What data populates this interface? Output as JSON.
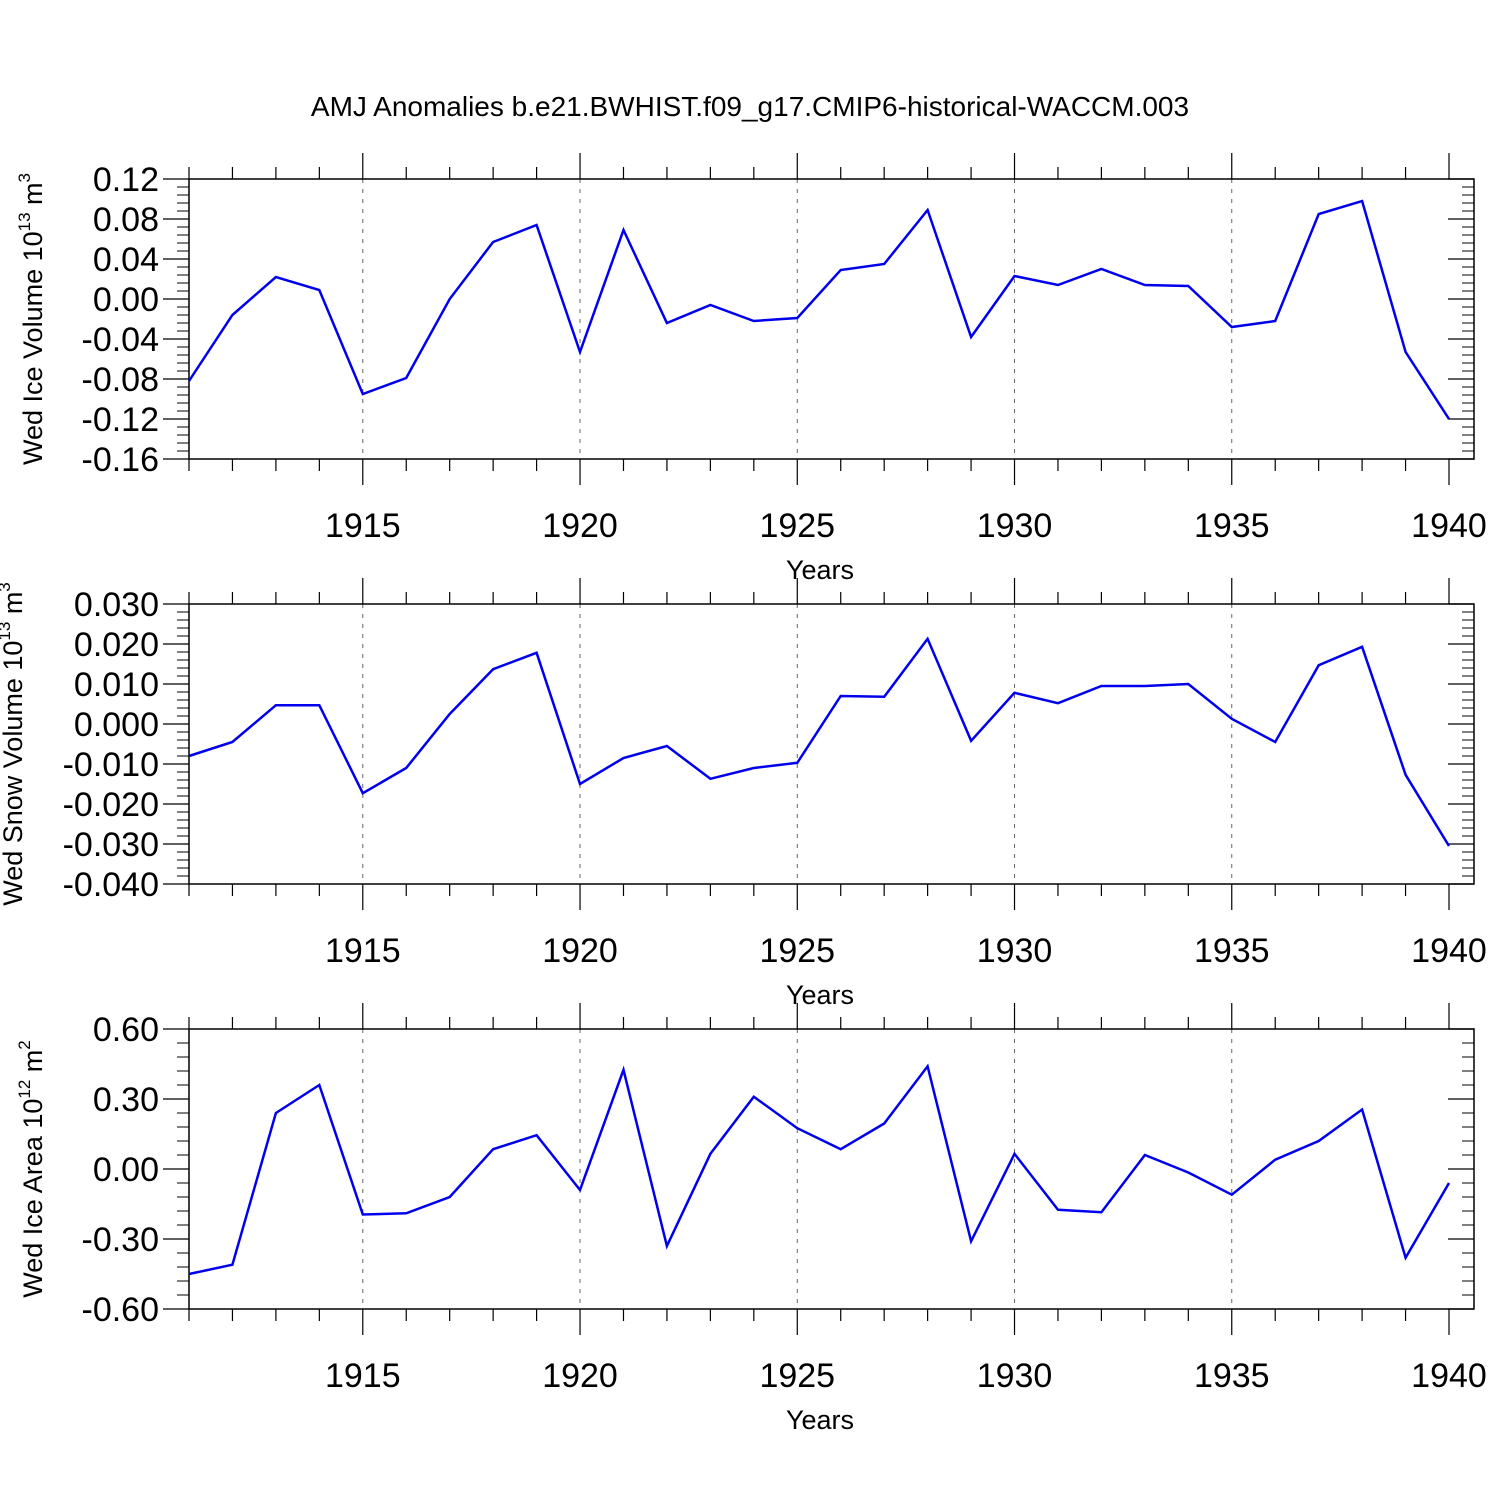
{
  "title": "AMJ Anomalies b.e21.BWHIST.f09_g17.CMIP6-historical-WACCM.003",
  "colors": {
    "line": "#0000ee",
    "axis": "#000000",
    "grid": "#666666"
  },
  "chart_data": [
    {
      "type": "line",
      "ylabel": {
        "text": "Wed Ice Volume 10",
        "exponent": "13",
        "unit": " m",
        "unit_exponent": "3"
      },
      "xlabel": "Years",
      "xlim": [
        1911,
        1940
      ],
      "ylim": [
        -0.16,
        0.12
      ],
      "x_major_ticks": [
        1915,
        1920,
        1925,
        1930,
        1935,
        1940
      ],
      "y_major_ticks": [
        "0.12",
        "0.08",
        "0.04",
        "0.00",
        "-0.04",
        "-0.08",
        "-0.12",
        "-0.16"
      ],
      "y_tick_values": [
        0.12,
        0.08,
        0.04,
        0.0,
        -0.04,
        -0.08,
        -0.12,
        -0.16
      ],
      "grid": "vertical dashed at major x ticks",
      "x": [
        1911,
        1912,
        1913,
        1914,
        1915,
        1916,
        1917,
        1918,
        1919,
        1920,
        1921,
        1922,
        1923,
        1924,
        1925,
        1926,
        1927,
        1928,
        1929,
        1930,
        1931,
        1932,
        1933,
        1934,
        1935,
        1936,
        1937,
        1938,
        1939,
        1940
      ],
      "values": [
        -0.082,
        -0.016,
        0.022,
        0.009,
        -0.095,
        -0.079,
        0.0,
        0.057,
        0.074,
        -0.053,
        0.069,
        -0.024,
        -0.006,
        -0.022,
        -0.019,
        0.029,
        0.035,
        0.089,
        -0.038,
        0.023,
        0.014,
        0.03,
        0.014,
        0.013,
        -0.028,
        -0.022,
        0.085,
        0.098,
        -0.053,
        -0.12
      ]
    },
    {
      "type": "line",
      "ylabel": {
        "text": "Wed Snow Volume 10",
        "exponent": "13",
        "unit": " m",
        "unit_exponent": "3"
      },
      "xlabel": "Years",
      "xlim": [
        1911,
        1940
      ],
      "ylim": [
        -0.04,
        0.03
      ],
      "x_major_ticks": [
        1915,
        1920,
        1925,
        1930,
        1935,
        1940
      ],
      "y_major_ticks": [
        "0.030",
        "0.020",
        "0.010",
        "0.000",
        "-0.010",
        "-0.020",
        "-0.030",
        "-0.040"
      ],
      "y_tick_values": [
        0.03,
        0.02,
        0.01,
        0.0,
        -0.01,
        -0.02,
        -0.03,
        -0.04
      ],
      "grid": "vertical dashed at major x ticks",
      "x": [
        1911,
        1912,
        1913,
        1914,
        1915,
        1916,
        1917,
        1918,
        1919,
        1920,
        1921,
        1922,
        1923,
        1924,
        1925,
        1926,
        1927,
        1928,
        1929,
        1930,
        1931,
        1932,
        1933,
        1934,
        1935,
        1936,
        1937,
        1938,
        1939,
        1940
      ],
      "values": [
        -0.008,
        -0.0045,
        0.0047,
        0.0047,
        -0.0173,
        -0.011,
        0.0025,
        0.0137,
        0.0178,
        -0.015,
        -0.0085,
        -0.0055,
        -0.0137,
        -0.011,
        -0.0097,
        0.007,
        0.0068,
        0.0213,
        -0.0042,
        0.0078,
        0.0052,
        0.0095,
        0.0095,
        0.01,
        0.0013,
        -0.0045,
        0.0147,
        0.0193,
        -0.0127,
        -0.0305
      ]
    },
    {
      "type": "line",
      "ylabel": {
        "text": "Wed Ice Area 10",
        "exponent": "12",
        "unit": " m",
        "unit_exponent": "2"
      },
      "xlabel": "Years",
      "xlim": [
        1911,
        1940
      ],
      "ylim": [
        -0.6,
        0.6
      ],
      "x_major_ticks": [
        1915,
        1920,
        1925,
        1930,
        1935,
        1940
      ],
      "y_major_ticks": [
        "0.60",
        "0.30",
        "0.00",
        "-0.30",
        "-0.60"
      ],
      "y_tick_values": [
        0.6,
        0.3,
        0.0,
        -0.3,
        -0.6
      ],
      "grid": "vertical dashed at major x ticks",
      "x": [
        1911,
        1912,
        1913,
        1914,
        1915,
        1916,
        1917,
        1918,
        1919,
        1920,
        1921,
        1922,
        1923,
        1924,
        1925,
        1926,
        1927,
        1928,
        1929,
        1930,
        1931,
        1932,
        1933,
        1934,
        1935,
        1936,
        1937,
        1938,
        1939,
        1940
      ],
      "values": [
        -0.45,
        -0.41,
        0.24,
        0.36,
        -0.195,
        -0.19,
        -0.12,
        0.085,
        0.145,
        -0.09,
        0.425,
        -0.33,
        0.065,
        0.31,
        0.175,
        0.085,
        0.195,
        0.44,
        -0.31,
        0.065,
        -0.175,
        -0.185,
        0.06,
        -0.015,
        -0.11,
        0.04,
        0.12,
        0.255,
        -0.38,
        -0.06
      ]
    }
  ]
}
